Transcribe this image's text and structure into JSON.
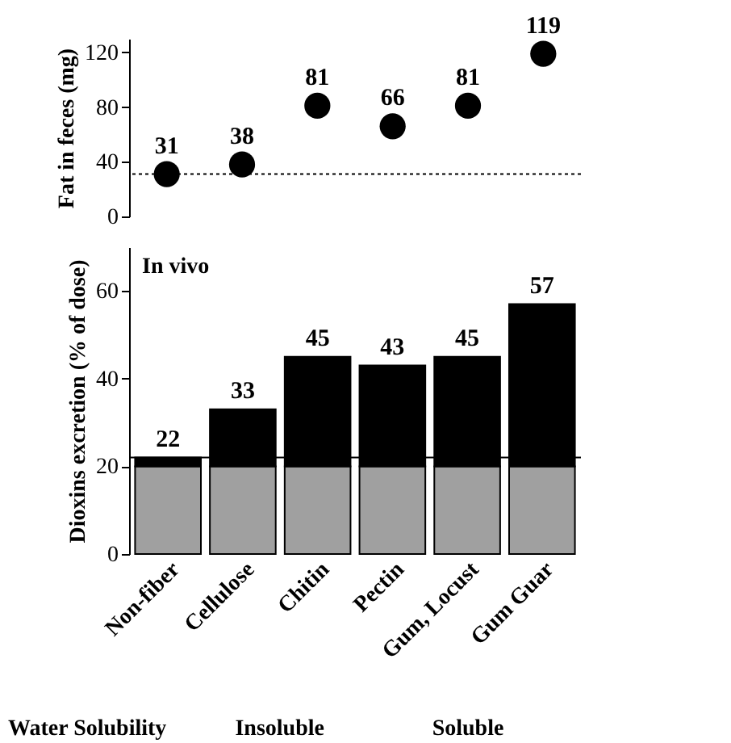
{
  "chart_data": [
    {
      "type": "scatter",
      "categories": [
        null,
        null,
        null,
        null,
        null,
        null
      ],
      "ylabel": "Fat in feces (mg)",
      "ylim": [
        0,
        130
      ],
      "yticks": [
        0,
        40,
        80,
        120
      ],
      "tick_labels": "y",
      "marker": "circle",
      "data_labels": true,
      "grid": false,
      "series": [
        {
          "color": "#000000",
          "values": [
            31,
            38,
            81,
            66,
            81,
            119
          ]
        }
      ],
      "ref_lines": [
        {
          "axis": "y",
          "value": 31,
          "line_style": "dotted"
        }
      ]
    },
    {
      "type": "bar",
      "stacked": true,
      "categories": [
        "Non-fiber",
        "Cellulose",
        "Chitin",
        "Pectin",
        "Gum, Locust",
        "Gum Guar"
      ],
      "ylabel": "Dioxins excretion (% of dose)",
      "ylim": [
        0,
        70
      ],
      "yticks": [
        0,
        20,
        40,
        60
      ],
      "grid": false,
      "series": [
        {
          "color": "#a0a0a0",
          "values": [
            20,
            20,
            20,
            20,
            20,
            20
          ]
        },
        {
          "color": "#000000",
          "values": [
            2,
            13,
            25,
            23,
            25,
            37
          ]
        }
      ],
      "totals": [
        "22",
        "33",
        "45",
        "43",
        "45",
        "57"
      ],
      "ref_lines": [
        {
          "axis": "y",
          "value": 22
        }
      ],
      "annotations": [
        "In vivo",
        "Water Solubility",
        "Insoluble",
        "Soluble"
      ]
    }
  ]
}
